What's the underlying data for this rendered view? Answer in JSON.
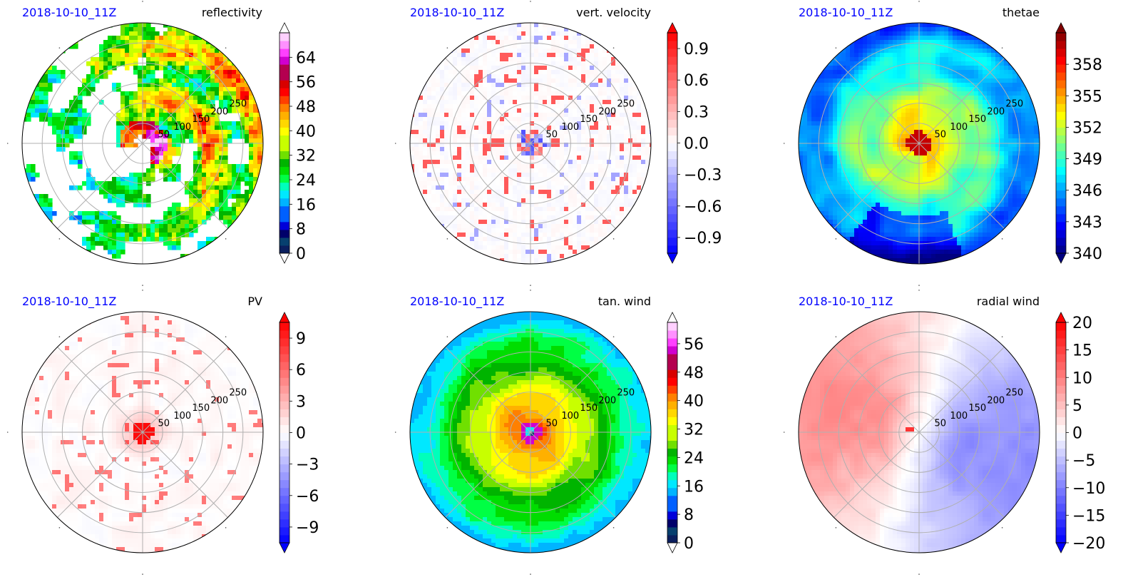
{
  "chart_data": [
    {
      "type": "heatmap",
      "projection": "polar",
      "time_label": "2018-10-10_11Z",
      "title": "reflectivity",
      "radial_ticks": [
        50,
        100,
        150,
        200,
        250
      ],
      "colorbar": {
        "ticks": [
          "0",
          "8",
          "16",
          "24",
          "32",
          "40",
          "48",
          "56",
          "64"
        ],
        "vmin": 0,
        "vmax": 72,
        "extend": "both",
        "cmap": "radar"
      },
      "field": "reflectivity"
    },
    {
      "type": "heatmap",
      "projection": "polar",
      "time_label": "2018-10-10_11Z",
      "title": "vert. velocity",
      "radial_ticks": [
        50,
        100,
        150,
        200,
        250
      ],
      "colorbar": {
        "ticks": [
          "−0.9",
          "−0.6",
          "−0.3",
          "0.0",
          "0.3",
          "0.6",
          "0.9"
        ],
        "vmin": -1.05,
        "vmax": 1.05,
        "extend": "both",
        "cmap": "bwr"
      },
      "field": "vertical_velocity"
    },
    {
      "type": "heatmap",
      "projection": "polar",
      "time_label": "2018-10-10_11Z",
      "title": "thetae",
      "radial_ticks": [
        50,
        100,
        150,
        200,
        250
      ],
      "colorbar": {
        "ticks": [
          "340",
          "343",
          "346",
          "349",
          "352",
          "355",
          "358"
        ],
        "vmin": 340,
        "vmax": 361,
        "extend": "both",
        "cmap": "jet"
      },
      "field": "thetae"
    },
    {
      "type": "heatmap",
      "projection": "polar",
      "time_label": "2018-10-10_11Z",
      "title": "PV",
      "radial_ticks": [
        50,
        100,
        150,
        200,
        250
      ],
      "colorbar": {
        "ticks": [
          "−9",
          "−6",
          "−3",
          "0",
          "3",
          "6",
          "9"
        ],
        "vmin": -10.5,
        "vmax": 10.5,
        "extend": "both",
        "cmap": "bwr"
      },
      "field": "pv"
    },
    {
      "type": "heatmap",
      "projection": "polar",
      "time_label": "2018-10-10_11Z",
      "title": "tan. wind",
      "radial_ticks": [
        50,
        100,
        150,
        200,
        250
      ],
      "colorbar": {
        "ticks": [
          "0",
          "8",
          "16",
          "24",
          "32",
          "40",
          "48",
          "56"
        ],
        "vmin": 0,
        "vmax": 62,
        "extend": "both",
        "cmap": "radar"
      },
      "field": "tangential_wind"
    },
    {
      "type": "heatmap",
      "projection": "polar",
      "time_label": "2018-10-10_11Z",
      "title": "radial wind",
      "radial_ticks": [
        50,
        100,
        150,
        200,
        250
      ],
      "colorbar": {
        "ticks": [
          "−20",
          "−15",
          "−10",
          "−5",
          "0",
          "5",
          "10",
          "15",
          "20"
        ],
        "vmin": -20,
        "vmax": 20,
        "extend": "both",
        "cmap": "bwr"
      },
      "field": "radial_wind"
    }
  ]
}
